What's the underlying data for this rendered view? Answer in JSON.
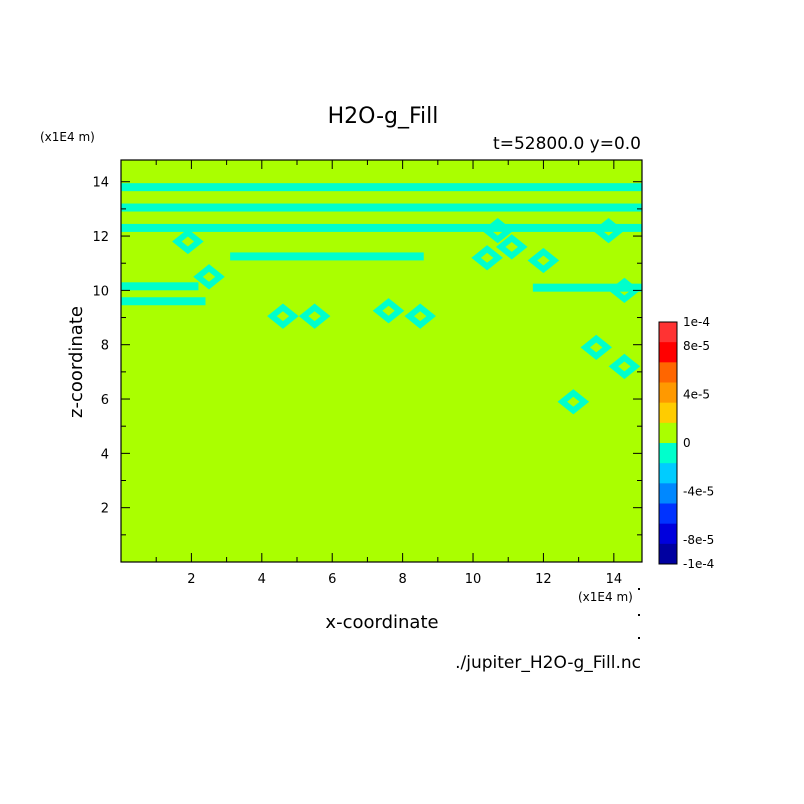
{
  "chart_data": {
    "type": "heatmap",
    "title": "H2O-g_Fill",
    "subtitle": "t=52800.0 y=0.0",
    "xlabel": "x-coordinate",
    "ylabel": "z-coordinate",
    "x_unit": "(x1E4 m)",
    "z_unit": "(x1E4 m)",
    "source": "./jupiter_H2O-g_Fill.nc",
    "xlim": [
      0,
      14.8
    ],
    "ylim": [
      0,
      14.8
    ],
    "x_ticks": [
      2,
      4,
      6,
      8,
      10,
      12,
      14
    ],
    "y_ticks": [
      2,
      4,
      6,
      8,
      10,
      12,
      14
    ],
    "field_description": "values near 0 everywhere; thin bands and patches of -2e-5 to 0 (cyan) in the upper part",
    "background_level": 0,
    "background_color": "#aaff00",
    "negative_color": "#00ffcc",
    "negative_bands": [
      {
        "z": 13.8,
        "x_range": [
          0,
          14.8
        ]
      },
      {
        "z": 13.05,
        "x_range": [
          0,
          14.8
        ]
      },
      {
        "z": 12.3,
        "x_range": [
          0,
          14.8
        ]
      },
      {
        "z": 11.25,
        "x_range": [
          3.1,
          8.6
        ]
      },
      {
        "z": 10.15,
        "x_range": [
          0,
          2.2
        ]
      },
      {
        "z": 9.6,
        "x_range": [
          0,
          2.4
        ]
      },
      {
        "z": 10.1,
        "x_range": [
          11.7,
          14.8
        ]
      }
    ],
    "negative_patches": [
      {
        "x": 4.6,
        "z": 9.05
      },
      {
        "x": 5.5,
        "z": 9.05
      },
      {
        "x": 7.6,
        "z": 9.25
      },
      {
        "x": 8.5,
        "z": 9.05
      },
      {
        "x": 10.7,
        "z": 12.2
      },
      {
        "x": 11.1,
        "z": 11.6
      },
      {
        "x": 10.4,
        "z": 11.2
      },
      {
        "x": 12.0,
        "z": 11.1
      },
      {
        "x": 13.85,
        "z": 12.2
      },
      {
        "x": 1.9,
        "z": 11.8
      },
      {
        "x": 2.5,
        "z": 10.5
      },
      {
        "x": 13.5,
        "z": 7.9
      },
      {
        "x": 14.3,
        "z": 7.2
      },
      {
        "x": 12.85,
        "z": 5.9
      },
      {
        "x": 14.3,
        "z": 10.0
      }
    ],
    "colorbar": {
      "labels": [
        "1e-4",
        "8e-5",
        "4e-5",
        "0",
        "-4e-5",
        "-8e-5",
        "-1e-4"
      ],
      "label_values": [
        0.0001,
        8e-05,
        4e-05,
        0,
        -4e-05,
        -8e-05,
        -0.0001
      ],
      "colors": [
        "#ff3333",
        "#ff0000",
        "#ff6600",
        "#ff9900",
        "#ffcc00",
        "#aaff00",
        "#00ffcc",
        "#00ccff",
        "#0088ff",
        "#0033ff",
        "#0000dd",
        "#0000a0"
      ]
    }
  }
}
